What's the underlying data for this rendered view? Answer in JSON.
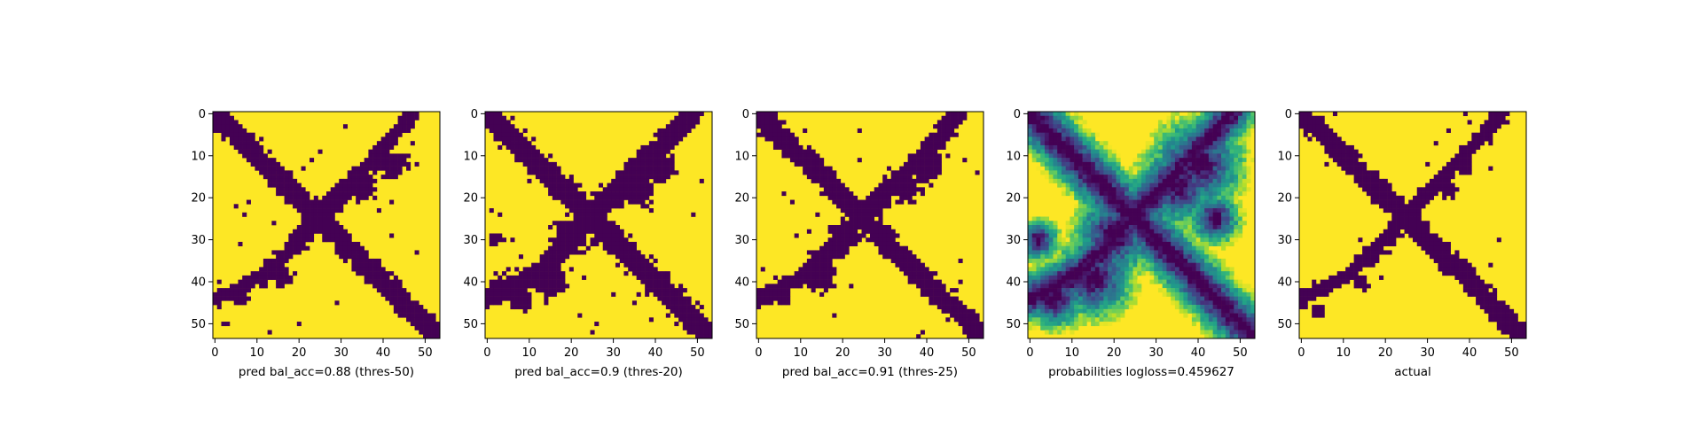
{
  "colors": {
    "low": "#440154",
    "high": "#fde725",
    "viridis": [
      "#440154",
      "#482878",
      "#3e4989",
      "#31688e",
      "#26828e",
      "#1f9e89",
      "#35b779",
      "#6ece58",
      "#b5de2b",
      "#fde725"
    ]
  },
  "chart_data": [
    {
      "type": "heatmap",
      "title": "",
      "xlabel": "pred bal_acc=0.88 (thres-50)",
      "ylabel": "",
      "size": 54,
      "xlim": [
        0,
        53
      ],
      "ylim": [
        53,
        0
      ],
      "xticks": [
        0,
        10,
        20,
        30,
        40,
        50
      ],
      "yticks": [
        0,
        10,
        20,
        30,
        40,
        50
      ],
      "value_range": [
        0,
        1
      ],
      "binary": true,
      "mask": {
        "diag_width": 2.5,
        "anti_segments": [
          [
            47,
            0,
            33,
            16,
            1.6
          ],
          [
            32,
            17,
            22,
            27,
            2.2
          ],
          [
            22,
            28,
            13,
            37,
            1.6
          ],
          [
            13,
            38,
            0,
            44,
            1.8
          ]
        ],
        "blobs": [
          [
            42,
            12,
            3.5
          ],
          [
            35,
            18,
            3
          ],
          [
            20,
            30,
            2.5
          ],
          [
            16,
            39,
            2.5
          ],
          [
            6,
            44,
            2
          ]
        ],
        "speckle_rate": 0.012
      }
    },
    {
      "type": "heatmap",
      "title": "",
      "xlabel": "pred bal_acc=0.9 (thres-20)",
      "ylabel": "",
      "size": 54,
      "xlim": [
        0,
        53
      ],
      "ylim": [
        53,
        0
      ],
      "xticks": [
        0,
        10,
        20,
        30,
        40,
        50
      ],
      "yticks": [
        0,
        10,
        20,
        30,
        40,
        50
      ],
      "value_range": [
        0,
        1
      ],
      "binary": true,
      "mask": {
        "diag_width": 2.8,
        "anti_segments": [
          [
            49,
            0,
            33,
            16,
            2.2
          ],
          [
            33,
            16,
            22,
            27,
            2.8
          ],
          [
            22,
            28,
            12,
            38,
            2.6
          ],
          [
            12,
            38,
            0,
            44,
            2.4
          ]
        ],
        "blobs": [
          [
            40,
            12,
            4.5
          ],
          [
            36,
            18,
            3.5
          ],
          [
            30,
            20,
            2.5
          ],
          [
            20,
            29,
            4
          ],
          [
            15,
            40,
            3.5
          ],
          [
            8,
            44,
            2.5
          ],
          [
            2,
            30,
            1.5
          ]
        ],
        "speckle_rate": 0.015
      }
    },
    {
      "type": "heatmap",
      "title": "",
      "xlabel": "pred bal_acc=0.91 (thres-25)",
      "ylabel": "",
      "size": 54,
      "xlim": [
        0,
        53
      ],
      "ylim": [
        53,
        0
      ],
      "xticks": [
        0,
        10,
        20,
        30,
        40,
        50
      ],
      "yticks": [
        0,
        10,
        20,
        30,
        40,
        50
      ],
      "value_range": [
        0,
        1
      ],
      "binary": true,
      "mask": {
        "diag_width": 2.6,
        "anti_segments": [
          [
            48,
            0,
            33,
            16,
            2
          ],
          [
            33,
            16,
            22,
            27,
            2.5
          ],
          [
            22,
            28,
            12,
            38,
            2.2
          ],
          [
            12,
            38,
            0,
            44,
            2.2
          ]
        ],
        "blobs": [
          [
            40,
            12,
            4
          ],
          [
            35,
            17,
            3.5
          ],
          [
            20,
            29,
            3
          ],
          [
            15,
            39,
            3
          ],
          [
            6,
            44,
            2
          ]
        ],
        "speckle_rate": 0.012
      }
    },
    {
      "type": "heatmap",
      "title": "",
      "xlabel": "probabilities logloss=0.459627",
      "ylabel": "",
      "size": 54,
      "xlim": [
        0,
        53
      ],
      "ylim": [
        53,
        0
      ],
      "xticks": [
        0,
        10,
        20,
        30,
        40,
        50
      ],
      "yticks": [
        0,
        10,
        20,
        30,
        40,
        50
      ],
      "value_range": [
        0,
        1
      ],
      "binary": false,
      "mask": {
        "diag_width": 2.6,
        "anti_segments": [
          [
            48,
            0,
            33,
            16,
            2.2
          ],
          [
            33,
            16,
            22,
            27,
            2.6
          ],
          [
            22,
            28,
            12,
            38,
            2.4
          ],
          [
            12,
            38,
            0,
            44,
            2.4
          ]
        ],
        "blobs": [
          [
            40,
            12,
            4.5
          ],
          [
            35,
            17,
            4
          ],
          [
            20,
            29,
            4
          ],
          [
            15,
            39,
            4
          ],
          [
            6,
            44,
            3
          ],
          [
            2,
            30,
            2
          ],
          [
            44,
            25,
            2.5
          ]
        ],
        "speckle_rate": 0
      }
    },
    {
      "type": "heatmap",
      "title": "",
      "xlabel": "actual",
      "ylabel": "",
      "size": 54,
      "xlim": [
        0,
        53
      ],
      "ylim": [
        53,
        0
      ],
      "xticks": [
        0,
        10,
        20,
        30,
        40,
        50
      ],
      "yticks": [
        0,
        10,
        20,
        30,
        40,
        50
      ],
      "value_range": [
        0,
        1
      ],
      "binary": true,
      "mask": {
        "diag_width": 2.2,
        "anti_segments": [
          [
            48,
            0,
            33,
            16,
            1.6
          ],
          [
            33,
            16,
            22,
            27,
            2
          ],
          [
            22,
            28,
            12,
            38,
            1.7
          ],
          [
            12,
            38,
            0,
            44,
            1.7
          ]
        ],
        "blobs": [
          [
            38,
            12,
            2.5
          ],
          [
            35,
            18,
            2
          ],
          [
            20,
            30,
            2
          ],
          [
            14,
            40,
            2
          ],
          [
            4,
            47,
            2
          ]
        ],
        "speckle_rate": 0.008
      }
    }
  ]
}
